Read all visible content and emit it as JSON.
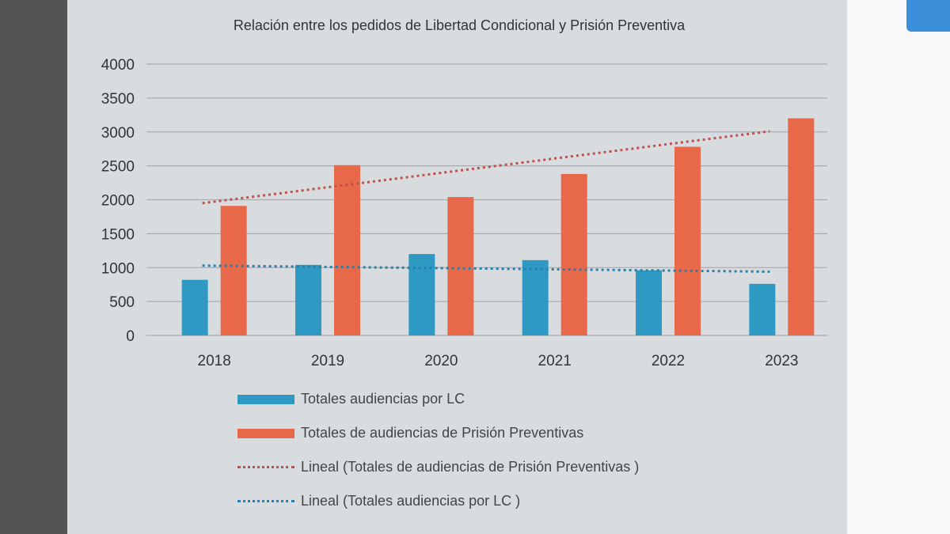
{
  "chart_data": {
    "type": "bar",
    "title": "Relación entre los pedidos de Libertad Condicional y Prisión Preventiva",
    "categories": [
      "2018",
      "2019",
      "2020",
      "2021",
      "2022",
      "2023"
    ],
    "series": [
      {
        "name": "Totales audiencias por LC",
        "color": "#2e9ac4",
        "values": [
          820,
          1040,
          1200,
          1110,
          960,
          760
        ]
      },
      {
        "name": "Totales de audiencias de Prisión Preventivas",
        "color": "#e8694a",
        "values": [
          1910,
          2510,
          2040,
          2380,
          2780,
          3200
        ]
      }
    ],
    "trendlines": [
      {
        "name": "Lineal (Totales de audiencias de Prisión Preventivas )",
        "color": "#c0504d",
        "style": "dotted",
        "start": 1950,
        "end": 3010
      },
      {
        "name": "Lineal (Totales audiencias por LC )",
        "color": "#2a7fa8",
        "style": "dotted",
        "start": 1030,
        "end": 940
      }
    ],
    "ylim": [
      0,
      4000
    ],
    "yticks": [
      "0",
      "500",
      "1000",
      "1500",
      "2000",
      "2500",
      "3000",
      "3500",
      "4000"
    ],
    "grid": true,
    "legend": "bottom"
  }
}
